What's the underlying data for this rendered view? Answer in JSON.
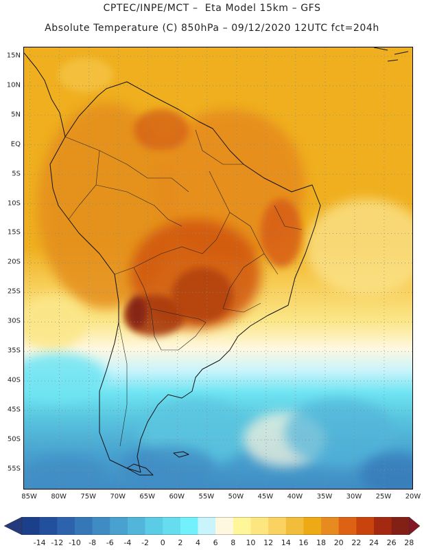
{
  "header": {
    "title_line1": "CPTEC/INPE/MCT –  Eta Model 15km – GFS",
    "title_line2": "Absolute Temperature (C) 850hPa – 09/12/2020 12UTC fct=204h"
  },
  "map": {
    "lat_labels": [
      "15N",
      "10N",
      "5N",
      "EQ",
      "5S",
      "10S",
      "15S",
      "20S",
      "25S",
      "30S",
      "35S",
      "40S",
      "45S",
      "50S",
      "55S"
    ],
    "lon_labels": [
      "85W",
      "80W",
      "75W",
      "70W",
      "65W",
      "60W",
      "55W",
      "50W",
      "45W",
      "40W",
      "35W",
      "30W",
      "25W",
      "20W"
    ],
    "lat_values": [
      15,
      10,
      5,
      0,
      -5,
      -10,
      -15,
      -20,
      -25,
      -30,
      -35,
      -40,
      -45,
      -50,
      -55
    ],
    "lon_values": [
      -85,
      -80,
      -75,
      -70,
      -65,
      -60,
      -55,
      -50,
      -45,
      -40,
      -35,
      -30,
      -25,
      -20
    ],
    "lat_range": [
      -58.5,
      16.5
    ],
    "lon_range": [
      -86,
      -20
    ]
  },
  "colorbar": {
    "labels": [
      "-14",
      "-12",
      "-10",
      "-8",
      "-6",
      "-4",
      "-2",
      "0",
      "2",
      "4",
      "6",
      "8",
      "10",
      "12",
      "14",
      "16",
      "18",
      "20",
      "22",
      "24",
      "26",
      "28"
    ],
    "colors": [
      "#1c3f8c",
      "#23509d",
      "#2d63ad",
      "#3677b8",
      "#3f8cc4",
      "#48a1cf",
      "#52b5da",
      "#5ccbe5",
      "#66dcef",
      "#72f0fb",
      "#c9f4fb",
      "#fff8e0",
      "#fff69a",
      "#fde680",
      "#fad262",
      "#f3bd3c",
      "#eeaa14",
      "#e78a20",
      "#de6214",
      "#c8440c",
      "#a32a10",
      "#832016"
    ],
    "under_color": "#25397d",
    "over_color": "#851625"
  }
}
